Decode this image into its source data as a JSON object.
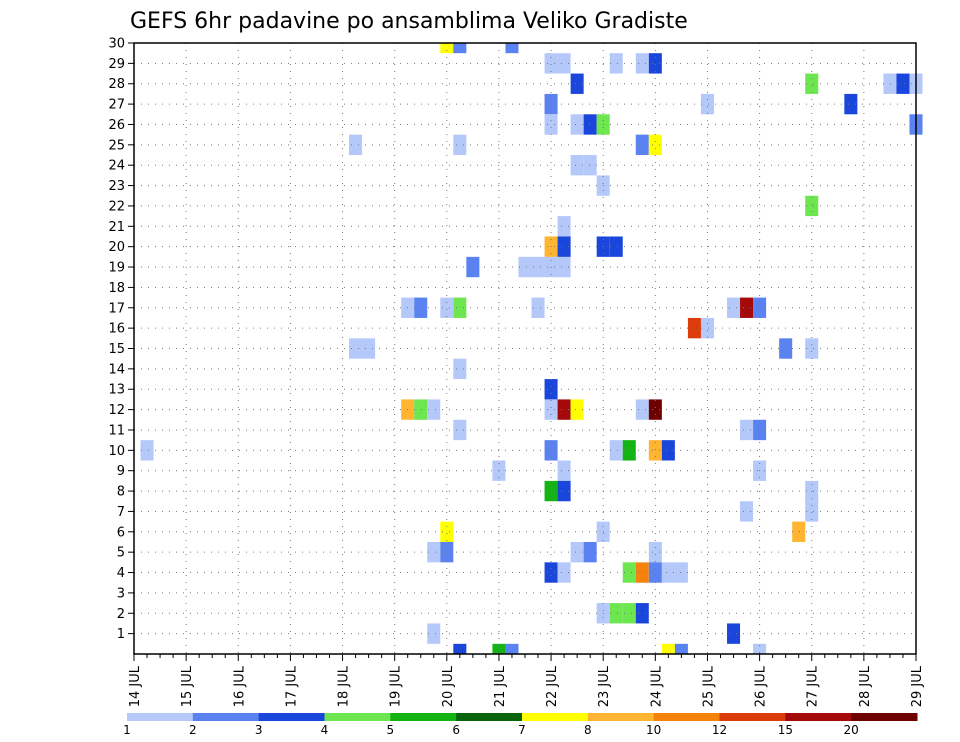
{
  "chart_data": {
    "type": "heatmap",
    "title": "GEFS 6hr padavine po ansamblima Veliko Gradiste",
    "xlabel": "",
    "ylabel": "",
    "y_ticks": [
      "1",
      "2",
      "3",
      "4",
      "5",
      "6",
      "7",
      "8",
      "9",
      "10",
      "11",
      "12",
      "13",
      "14",
      "15",
      "16",
      "17",
      "18",
      "19",
      "20",
      "21",
      "22",
      "23",
      "24",
      "25",
      "26",
      "27",
      "28",
      "29",
      "30"
    ],
    "ylim": [
      0,
      30
    ],
    "x_ticks": [
      "14 JUL",
      "15 JUL",
      "16 JUL",
      "17 JUL",
      "18 JUL",
      "19 JUL",
      "20 JUL",
      "21 JUL",
      "22 JUL",
      "23 JUL",
      "24 JUL",
      "25 JUL",
      "26 JUL",
      "27 JUL",
      "28 JUL",
      "29 JUL"
    ],
    "x_range_days": [
      14,
      29
    ],
    "grid": true,
    "colorbar": {
      "levels": [
        "1",
        "2",
        "3",
        "4",
        "5",
        "6",
        "7",
        "8",
        "10",
        "12",
        "15",
        "20"
      ],
      "colors": [
        "#b4c8fa",
        "#5a82f0",
        "#1a46dc",
        "#6ee650",
        "#14b414",
        "#0a640a",
        "#ffff00",
        "#ffb432",
        "#f5820a",
        "#dc3c0a",
        "#a50a0a",
        "#6e0000"
      ]
    },
    "cells": [
      {
        "x": 14.25,
        "y": 10,
        "c": 0
      },
      {
        "x": 18.25,
        "y": 25,
        "c": 0
      },
      {
        "x": 18.25,
        "y": 15,
        "c": 0
      },
      {
        "x": 18.5,
        "y": 15,
        "c": 0
      },
      {
        "x": 19.25,
        "y": 17,
        "c": 0
      },
      {
        "x": 19.5,
        "y": 17,
        "c": 1
      },
      {
        "x": 19.25,
        "y": 12,
        "c": 7
      },
      {
        "x": 19.5,
        "y": 12,
        "c": 3
      },
      {
        "x": 19.75,
        "y": 12,
        "c": 0
      },
      {
        "x": 19.75,
        "y": 5,
        "c": 0
      },
      {
        "x": 19.75,
        "y": 1,
        "c": 0
      },
      {
        "x": 20.0,
        "y": 30,
        "c": 6
      },
      {
        "x": 20.25,
        "y": 30,
        "c": 1
      },
      {
        "x": 20.25,
        "y": 25,
        "c": 0
      },
      {
        "x": 20.0,
        "y": 17,
        "c": 0
      },
      {
        "x": 20.25,
        "y": 17,
        "c": 3
      },
      {
        "x": 20.25,
        "y": 14,
        "c": 0
      },
      {
        "x": 20.25,
        "y": 11,
        "c": 0
      },
      {
        "x": 20.0,
        "y": 6,
        "c": 6
      },
      {
        "x": 20.0,
        "y": 5,
        "c": 1
      },
      {
        "x": 20.25,
        "y": 0,
        "c": 2
      },
      {
        "x": 20.5,
        "y": 19,
        "c": 1
      },
      {
        "x": 21.0,
        "y": 9,
        "c": 0
      },
      {
        "x": 21.0,
        "y": 0,
        "c": 4
      },
      {
        "x": 21.25,
        "y": 0,
        "c": 1
      },
      {
        "x": 21.25,
        "y": 30,
        "c": 1
      },
      {
        "x": 21.5,
        "y": 19,
        "c": 0
      },
      {
        "x": 21.75,
        "y": 19,
        "c": 0
      },
      {
        "x": 22.0,
        "y": 19,
        "c": 0
      },
      {
        "x": 22.25,
        "y": 19,
        "c": 0
      },
      {
        "x": 21.75,
        "y": 17,
        "c": 0
      },
      {
        "x": 22.0,
        "y": 29,
        "c": 0
      },
      {
        "x": 22.25,
        "y": 29,
        "c": 0
      },
      {
        "x": 22.0,
        "y": 27,
        "c": 1
      },
      {
        "x": 22.0,
        "y": 26,
        "c": 0
      },
      {
        "x": 22.25,
        "y": 21,
        "c": 0
      },
      {
        "x": 22.0,
        "y": 20,
        "c": 7
      },
      {
        "x": 22.25,
        "y": 20,
        "c": 2
      },
      {
        "x": 22.0,
        "y": 13,
        "c": 2
      },
      {
        "x": 22.0,
        "y": 12,
        "c": 0
      },
      {
        "x": 22.25,
        "y": 12,
        "c": 10
      },
      {
        "x": 22.5,
        "y": 12,
        "c": 6
      },
      {
        "x": 22.0,
        "y": 10,
        "c": 1
      },
      {
        "x": 22.25,
        "y": 9,
        "c": 0
      },
      {
        "x": 22.0,
        "y": 8,
        "c": 4
      },
      {
        "x": 22.25,
        "y": 8,
        "c": 2
      },
      {
        "x": 22.0,
        "y": 4,
        "c": 2
      },
      {
        "x": 22.25,
        "y": 4,
        "c": 0
      },
      {
        "x": 22.5,
        "y": 28,
        "c": 2
      },
      {
        "x": 22.5,
        "y": 26,
        "c": 0
      },
      {
        "x": 22.75,
        "y": 26,
        "c": 2
      },
      {
        "x": 23.0,
        "y": 26,
        "c": 3
      },
      {
        "x": 22.5,
        "y": 24,
        "c": 0
      },
      {
        "x": 22.75,
        "y": 24,
        "c": 0
      },
      {
        "x": 23.0,
        "y": 23,
        "c": 0
      },
      {
        "x": 22.5,
        "y": 5,
        "c": 0
      },
      {
        "x": 22.75,
        "y": 5,
        "c": 1
      },
      {
        "x": 23.0,
        "y": 6,
        "c": 0
      },
      {
        "x": 23.25,
        "y": 29,
        "c": 0
      },
      {
        "x": 23.0,
        "y": 20,
        "c": 2
      },
      {
        "x": 23.25,
        "y": 20,
        "c": 2
      },
      {
        "x": 23.25,
        "y": 10,
        "c": 0
      },
      {
        "x": 23.5,
        "y": 10,
        "c": 4
      },
      {
        "x": 23.5,
        "y": 4,
        "c": 3
      },
      {
        "x": 23.75,
        "y": 4,
        "c": 8
      },
      {
        "x": 23.0,
        "y": 2,
        "c": 0
      },
      {
        "x": 23.25,
        "y": 2,
        "c": 3
      },
      {
        "x": 23.5,
        "y": 2,
        "c": 3
      },
      {
        "x": 23.75,
        "y": 2,
        "c": 2
      },
      {
        "x": 23.75,
        "y": 29,
        "c": 0
      },
      {
        "x": 24.0,
        "y": 29,
        "c": 2
      },
      {
        "x": 23.75,
        "y": 25,
        "c": 1
      },
      {
        "x": 24.0,
        "y": 25,
        "c": 6
      },
      {
        "x": 23.75,
        "y": 12,
        "c": 0
      },
      {
        "x": 24.0,
        "y": 12,
        "c": 11
      },
      {
        "x": 24.0,
        "y": 10,
        "c": 7
      },
      {
        "x": 24.25,
        "y": 10,
        "c": 2
      },
      {
        "x": 24.0,
        "y": 5,
        "c": 0
      },
      {
        "x": 24.0,
        "y": 4,
        "c": 1
      },
      {
        "x": 24.25,
        "y": 4,
        "c": 0
      },
      {
        "x": 24.5,
        "y": 4,
        "c": 0
      },
      {
        "x": 24.25,
        "y": 0,
        "c": 6
      },
      {
        "x": 24.5,
        "y": 0,
        "c": 1
      },
      {
        "x": 24.75,
        "y": 16,
        "c": 9
      },
      {
        "x": 25.0,
        "y": 16,
        "c": 0
      },
      {
        "x": 25.0,
        "y": 27,
        "c": 0
      },
      {
        "x": 25.5,
        "y": 17,
        "c": 0
      },
      {
        "x": 25.75,
        "y": 17,
        "c": 10
      },
      {
        "x": 26.0,
        "y": 17,
        "c": 1
      },
      {
        "x": 25.5,
        "y": 1,
        "c": 2
      },
      {
        "x": 25.75,
        "y": 11,
        "c": 0
      },
      {
        "x": 26.0,
        "y": 11,
        "c": 1
      },
      {
        "x": 25.75,
        "y": 7,
        "c": 0
      },
      {
        "x": 26.0,
        "y": 9,
        "c": 0
      },
      {
        "x": 26.0,
        "y": 0,
        "c": 0
      },
      {
        "x": 26.5,
        "y": 15,
        "c": 1
      },
      {
        "x": 26.75,
        "y": 6,
        "c": 7
      },
      {
        "x": 27.0,
        "y": 28,
        "c": 3
      },
      {
        "x": 27.0,
        "y": 22,
        "c": 3
      },
      {
        "x": 27.0,
        "y": 15,
        "c": 0
      },
      {
        "x": 27.0,
        "y": 8,
        "c": 0
      },
      {
        "x": 27.0,
        "y": 7,
        "c": 0
      },
      {
        "x": 27.75,
        "y": 27,
        "c": 2
      },
      {
        "x": 28.5,
        "y": 28,
        "c": 0
      },
      {
        "x": 28.75,
        "y": 28,
        "c": 2
      },
      {
        "x": 29.0,
        "y": 28,
        "c": 0
      },
      {
        "x": 29.0,
        "y": 26,
        "c": 1
      }
    ]
  }
}
